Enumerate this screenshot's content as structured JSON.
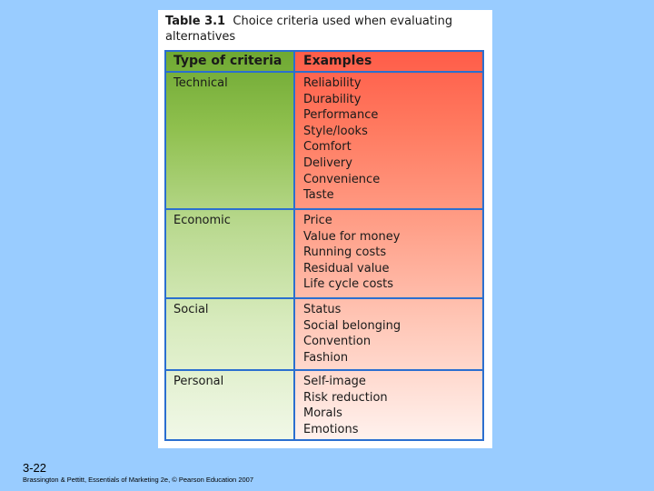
{
  "slide": {
    "number": "3-22",
    "citation": "Brassington & Pettitt, Essentials of Marketing 2e, © Pearson Education 2007"
  },
  "table": {
    "label": "Table 3.1",
    "caption": "Choice criteria used when evaluating alternatives",
    "headers": [
      "Type of criteria",
      "Examples"
    ],
    "rows": [
      {
        "type": "Technical",
        "examples": [
          "Reliability",
          "Durability",
          "Performance",
          "Style/looks",
          "Comfort",
          "Delivery",
          "Convenience",
          "Taste"
        ]
      },
      {
        "type": "Economic",
        "examples": [
          "Price",
          "Value for money",
          "Running costs",
          "Residual value",
          "Life cycle costs"
        ]
      },
      {
        "type": "Social",
        "examples": [
          "Status",
          "Social belonging",
          "Convention",
          "Fashion"
        ]
      },
      {
        "type": "Personal",
        "examples": [
          "Self-image",
          "Risk reduction",
          "Morals",
          "Emotions"
        ]
      }
    ],
    "colors": {
      "header_left": "#6ea832",
      "header_right": "#ff5c48",
      "rules": "#2b6fcf"
    }
  }
}
